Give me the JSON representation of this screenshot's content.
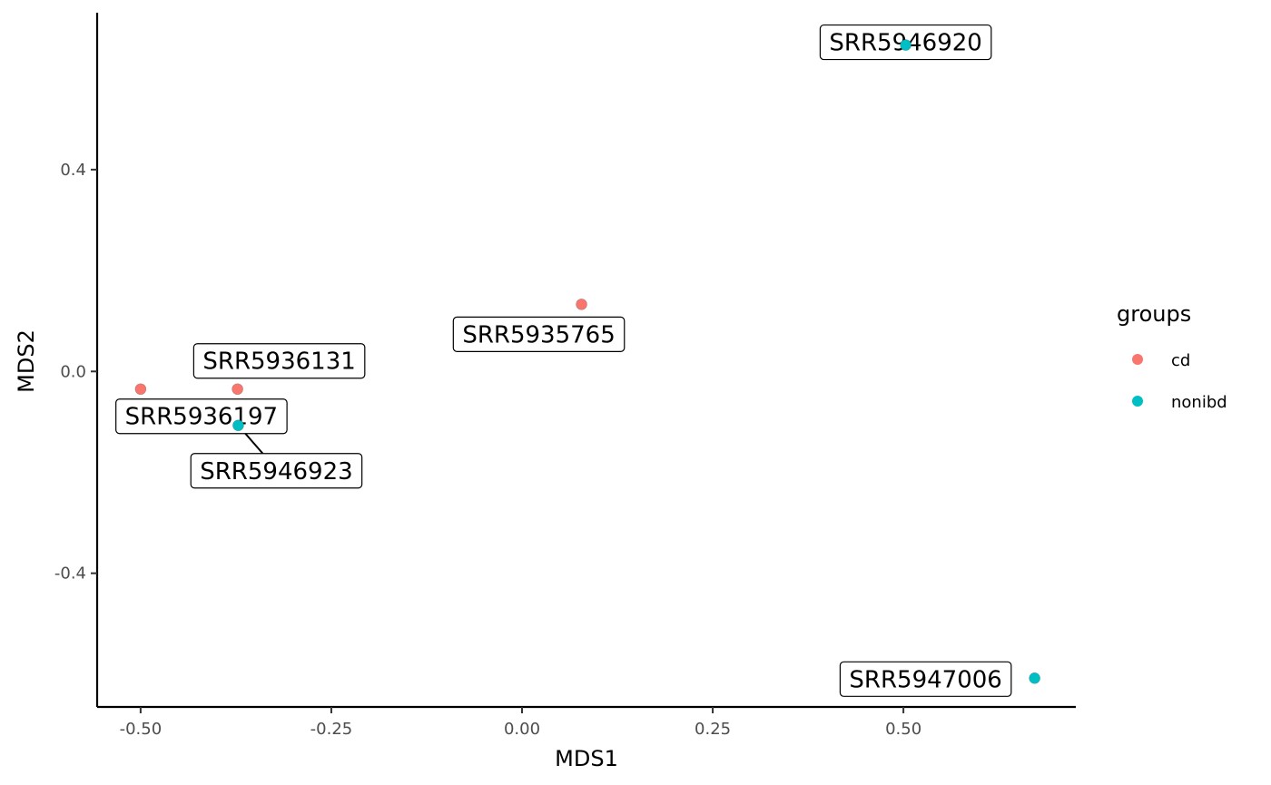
{
  "chart_data": {
    "type": "scatter",
    "title": "",
    "xlabel": "MDS1",
    "ylabel": "MDS2",
    "xlim": [
      -0.557,
      0.726
    ],
    "ylim": [
      -0.665,
      0.711
    ],
    "x_ticks": [
      -0.5,
      -0.25,
      0.0,
      0.25,
      0.5
    ],
    "x_tick_labels": [
      "-0.50",
      "-0.25",
      "0.00",
      "0.25",
      "0.50"
    ],
    "y_ticks": [
      -0.4,
      0.0,
      0.4
    ],
    "y_tick_labels": [
      "-0.4",
      "0.0",
      "0.4"
    ],
    "grid": false,
    "legend": {
      "title": "groups",
      "placement": "right",
      "entries": [
        {
          "name": "cd",
          "color": "#F8766D"
        },
        {
          "name": "nonibd",
          "color": "#00BFC4"
        }
      ]
    },
    "points": [
      {
        "label": "SRR5946920",
        "x": 0.503,
        "y": 0.647,
        "group": "nonibd"
      },
      {
        "label": "SRR5935765",
        "x": 0.078,
        "y": 0.133,
        "group": "cd"
      },
      {
        "label": "SRR5936131",
        "x": -0.373,
        "y": -0.035,
        "group": "cd"
      },
      {
        "label": "SRR5936197",
        "x": -0.5,
        "y": -0.035,
        "group": "cd"
      },
      {
        "label": "SRR5946923",
        "x": -0.372,
        "y": -0.107,
        "group": "nonibd"
      },
      {
        "label": "SRR5947006",
        "x": 0.672,
        "y": -0.608,
        "group": "nonibd"
      }
    ]
  }
}
